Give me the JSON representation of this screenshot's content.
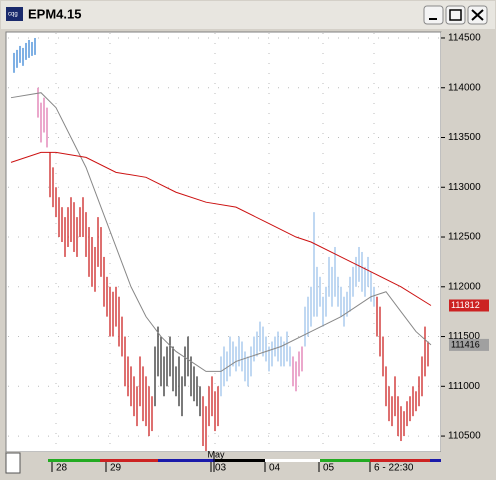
{
  "chart_data": {
    "type": "ohlc",
    "title": "EPM4.15",
    "xlim": [
      -1,
      143
    ],
    "ylim": [
      110360,
      114550
    ],
    "yticks": [
      110500,
      111000,
      111500,
      112000,
      112500,
      113000,
      113500,
      114000,
      114500
    ],
    "xticks": [
      {
        "value": 15,
        "label": "28"
      },
      {
        "value": 33,
        "label": "29"
      },
      {
        "value": 68,
        "label": "03"
      },
      {
        "value": 86,
        "label": "04"
      },
      {
        "value": 104,
        "label": "05"
      },
      {
        "value": 121,
        "label": "6 - 22:30"
      }
    ],
    "month_label": {
      "value": 69,
      "label": "May"
    },
    "grid": true,
    "series": [
      {
        "color": "#3a86d6",
        "x": [
          1,
          2,
          3,
          4,
          5,
          6,
          7,
          8
        ],
        "high": [
          114350,
          114380,
          114420,
          114400,
          114450,
          114480,
          114460,
          114500
        ],
        "low": [
          114150,
          114200,
          114250,
          114220,
          114280,
          114300,
          114320,
          114330
        ]
      },
      {
        "color": "#e07ab0",
        "x": [
          9,
          10,
          11,
          12
        ],
        "high": [
          114000,
          113850,
          113900,
          113800
        ],
        "low": [
          113700,
          113450,
          113550,
          113400
        ]
      },
      {
        "color": "#cc2222",
        "x": [
          13,
          14,
          15,
          16,
          17,
          18,
          19,
          20,
          21,
          22,
          23,
          24,
          25,
          26,
          27,
          28,
          29,
          30,
          31,
          32,
          33,
          34,
          35,
          36,
          37,
          38,
          39,
          40,
          41,
          42,
          43,
          44,
          45,
          46,
          47
        ],
        "high": [
          113350,
          113200,
          113000,
          112900,
          112800,
          112700,
          112800,
          112900,
          112850,
          112700,
          112800,
          112900,
          112750,
          112600,
          112500,
          112400,
          112700,
          112600,
          112300,
          112100,
          112000,
          111950,
          112000,
          111900,
          111700,
          111500,
          111300,
          111200,
          111100,
          111000,
          111300,
          111200,
          111100,
          111000,
          110900
        ],
        "low": [
          112900,
          112800,
          112700,
          112500,
          112450,
          112300,
          112400,
          112450,
          112350,
          112300,
          112500,
          112500,
          112300,
          112100,
          112000,
          111950,
          112200,
          112100,
          111800,
          111700,
          111500,
          111500,
          111600,
          111400,
          111300,
          111000,
          110900,
          110800,
          110700,
          110600,
          110800,
          110650,
          110600,
          110500,
          110550
        ]
      },
      {
        "color": "#333333",
        "x": [
          48,
          49,
          50,
          51,
          52,
          53,
          54,
          55,
          56,
          57,
          58,
          59,
          60,
          61,
          62,
          63
        ],
        "high": [
          111400,
          111600,
          111500,
          111300,
          111400,
          111500,
          111400,
          111200,
          111300,
          111100,
          111400,
          111500,
          111300,
          111200,
          111100,
          111000
        ],
        "low": [
          110800,
          111100,
          111000,
          110900,
          111000,
          111100,
          110950,
          110900,
          110800,
          110700,
          111000,
          111100,
          110900,
          110850,
          110800,
          110700
        ]
      },
      {
        "color": "#cc2222",
        "x": [
          64,
          65,
          66,
          67,
          68,
          69
        ],
        "high": [
          110900,
          110800,
          111000,
          111100,
          110950,
          111000
        ],
        "low": [
          110400,
          110350,
          110600,
          110700,
          110550,
          110600
        ]
      },
      {
        "color": "#9ec3ea",
        "x": [
          70,
          71,
          72,
          73,
          74,
          75,
          76,
          77,
          78,
          79,
          80,
          81,
          82,
          83,
          84,
          85,
          86,
          87,
          88,
          89,
          90,
          91,
          92,
          93
        ],
        "high": [
          111300,
          111400,
          111350,
          111500,
          111450,
          111400,
          111500,
          111450,
          111350,
          111300,
          111400,
          111500,
          111550,
          111650,
          111600,
          111500,
          111400,
          111450,
          111500,
          111550,
          111500,
          111450,
          111550,
          111400
        ],
        "low": [
          110900,
          111000,
          111050,
          111100,
          111200,
          111150,
          111200,
          111150,
          111050,
          111000,
          111100,
          111250,
          111300,
          111350,
          111300,
          111250,
          111150,
          111200,
          111300,
          111250,
          111200,
          111200,
          111250,
          111200
        ]
      },
      {
        "color": "#e07ab0",
        "x": [
          94,
          95,
          96,
          97
        ],
        "high": [
          111300,
          111250,
          111350,
          111400
        ],
        "low": [
          111000,
          110950,
          111100,
          111150
        ]
      },
      {
        "color": "#9ec3ea",
        "x": [
          98,
          99,
          100,
          101,
          102,
          103,
          104,
          105,
          106,
          107,
          108,
          109,
          110,
          111,
          112,
          113,
          114,
          115,
          116,
          117,
          118,
          119,
          120,
          121
        ],
        "high": [
          111800,
          111900,
          112000,
          112750,
          112200,
          112100,
          111900,
          112000,
          112300,
          112200,
          112400,
          112100,
          112000,
          111900,
          111950,
          112100,
          112200,
          112300,
          112400,
          112350,
          112200,
          112300,
          112150,
          112000
        ],
        "low": [
          111400,
          111500,
          111600,
          111700,
          111700,
          111800,
          111600,
          111700,
          111900,
          111800,
          111900,
          111800,
          111700,
          111600,
          111700,
          111750,
          111900,
          112000,
          112050,
          111950,
          111900,
          112000,
          111850,
          111800
        ]
      },
      {
        "color": "#cc2222",
        "x": [
          122,
          123,
          124,
          125,
          126,
          127,
          128,
          129,
          130,
          131,
          132,
          133,
          134,
          135,
          136,
          137,
          138,
          139
        ],
        "high": [
          111900,
          111800,
          111500,
          111200,
          111000,
          110900,
          111100,
          110900,
          110800,
          110750,
          110850,
          110900,
          111000,
          110950,
          111100,
          111300,
          111600,
          111450
        ],
        "low": [
          111500,
          111300,
          111100,
          110800,
          110650,
          110600,
          110700,
          110500,
          110450,
          110500,
          110600,
          110650,
          110700,
          110750,
          110800,
          110900,
          111100,
          111200
        ]
      }
    ],
    "lines": [
      {
        "color": "#888888",
        "x": [
          0,
          10,
          15,
          20,
          25,
          30,
          35,
          40,
          45,
          50,
          55,
          60,
          65,
          70,
          75,
          80,
          90,
          100,
          110,
          115,
          120,
          125,
          130,
          135,
          140
        ],
        "values": [
          113900,
          113950,
          113800,
          113500,
          113200,
          112800,
          112400,
          112000,
          111700,
          111500,
          111350,
          111250,
          111150,
          111150,
          111250,
          111300,
          111400,
          111550,
          111700,
          111800,
          111900,
          111950,
          111750,
          111550,
          111416
        ]
      },
      {
        "color": "#cc1111",
        "x": [
          0,
          10,
          15,
          25,
          35,
          45,
          55,
          65,
          75,
          85,
          95,
          100,
          110,
          120,
          130,
          140
        ],
        "values": [
          113250,
          113350,
          113350,
          113300,
          113150,
          113100,
          112950,
          112850,
          112800,
          112650,
          112500,
          112450,
          112300,
          112150,
          112000,
          111812
        ]
      }
    ],
    "last_values": [
      {
        "value": 111812,
        "color": "#cc2222",
        "text_color": "#ffffff"
      },
      {
        "value": 111416,
        "color": "#a0a0a0",
        "text_color": "#000000"
      }
    ]
  }
}
